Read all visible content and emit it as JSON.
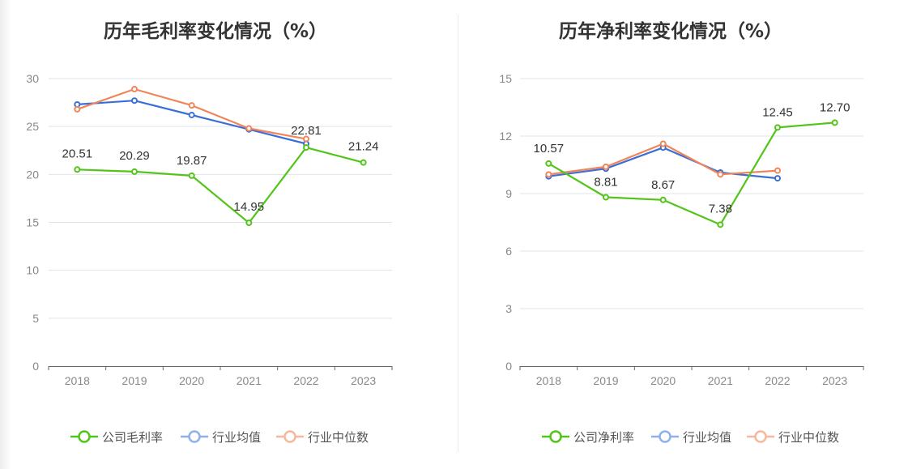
{
  "colors": {
    "company": "#52c41a",
    "industry_avg": "#3b6fd6",
    "industry_median": "#f0855a",
    "legend_avg": "#8fb0ea",
    "legend_median": "#f5b89c",
    "grid": "#e0e3ea",
    "axis": "#666666"
  },
  "chart_data": [
    {
      "type": "line",
      "title": "历年毛利率变化情况（%）",
      "categories": [
        "2018",
        "2019",
        "2020",
        "2021",
        "2022",
        "2023"
      ],
      "ylim": [
        0,
        30
      ],
      "yticks": [
        0,
        5,
        10,
        15,
        20,
        25,
        30
      ],
      "grid": true,
      "legend_position": "bottom",
      "series": [
        {
          "name": "公司毛利率",
          "key": "company",
          "values": [
            20.51,
            20.29,
            19.87,
            14.95,
            22.81,
            21.24
          ],
          "labels": [
            "20.51",
            "20.29",
            "19.87",
            "14.95",
            "22.81",
            "21.24"
          ]
        },
        {
          "name": "行业均值",
          "key": "industry_avg",
          "values": [
            27.3,
            27.7,
            26.2,
            24.7,
            23.2,
            null
          ]
        },
        {
          "name": "行业中位数",
          "key": "industry_median",
          "values": [
            26.8,
            28.9,
            27.2,
            24.8,
            23.7,
            null
          ]
        }
      ]
    },
    {
      "type": "line",
      "title": "历年净利率变化情况（%）",
      "categories": [
        "2018",
        "2019",
        "2020",
        "2021",
        "2022",
        "2023"
      ],
      "ylim": [
        0,
        15
      ],
      "yticks": [
        0,
        3,
        6,
        9,
        12,
        15
      ],
      "grid": true,
      "legend_position": "bottom",
      "series": [
        {
          "name": "公司净利率",
          "key": "company",
          "values": [
            10.57,
            8.81,
            8.67,
            7.38,
            12.45,
            12.7
          ],
          "labels": [
            "10.57",
            "8.81",
            "8.67",
            "7.38",
            "12.45",
            "12.70"
          ]
        },
        {
          "name": "行业均值",
          "key": "industry_avg",
          "values": [
            9.9,
            10.3,
            11.4,
            10.1,
            9.8,
            null
          ]
        },
        {
          "name": "行业中位数",
          "key": "industry_median",
          "values": [
            10.0,
            10.4,
            11.6,
            10.0,
            10.2,
            null
          ]
        }
      ]
    }
  ]
}
